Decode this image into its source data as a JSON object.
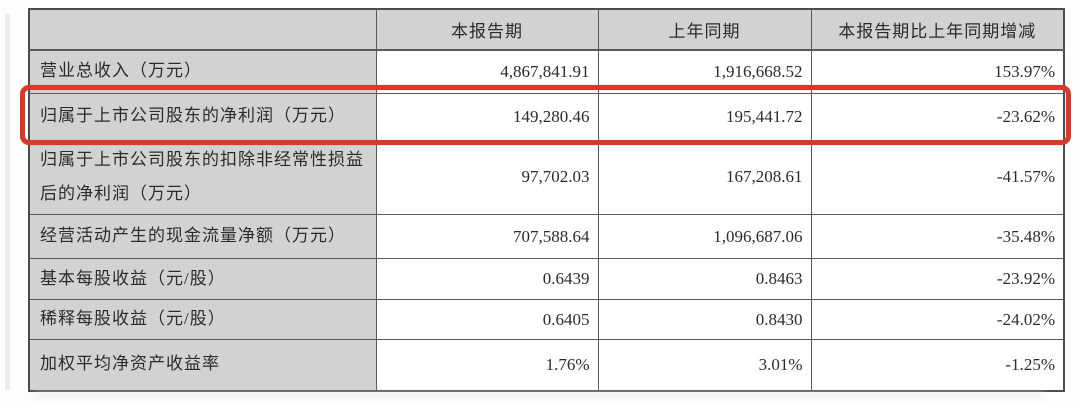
{
  "page": {
    "background": "#fdfdfd"
  },
  "table": {
    "columns": [
      "",
      "本报告期",
      "上年同期",
      "本报告期比上年同期增减"
    ],
    "rows": [
      {
        "label": "营业总收入（万元）",
        "current": "4,867,841.91",
        "prior": "1,916,668.52",
        "change": "153.97%"
      },
      {
        "label": "归属于上市公司股东的净利润（万元）",
        "current": "149,280.46",
        "prior": "195,441.72",
        "change": "-23.62%"
      },
      {
        "label": "归属于上市公司股东的扣除非经常性损益后的净利润（万元）",
        "current": "97,702.03",
        "prior": "167,208.61",
        "change": "-41.57%"
      },
      {
        "label": "经营活动产生的现金流量净额（万元）",
        "current": "707,588.64",
        "prior": "1,096,687.06",
        "change": "-35.48%"
      },
      {
        "label": "基本每股收益（元/股）",
        "current": "0.6439",
        "prior": "0.8463",
        "change": "-23.92%"
      },
      {
        "label": "稀释每股收益（元/股）",
        "current": "0.6405",
        "prior": "0.8430",
        "change": "-24.02%"
      },
      {
        "label": "加权平均净资产收益率",
        "current": "1.76%",
        "prior": "3.01%",
        "change": "-1.25%"
      }
    ],
    "highlight": {
      "row_index": 1,
      "color": "#d63a2b"
    },
    "colors": {
      "header_fill": "#d2d2d2",
      "grid_line": "#59595b",
      "text": "#2b2b2b"
    }
  }
}
